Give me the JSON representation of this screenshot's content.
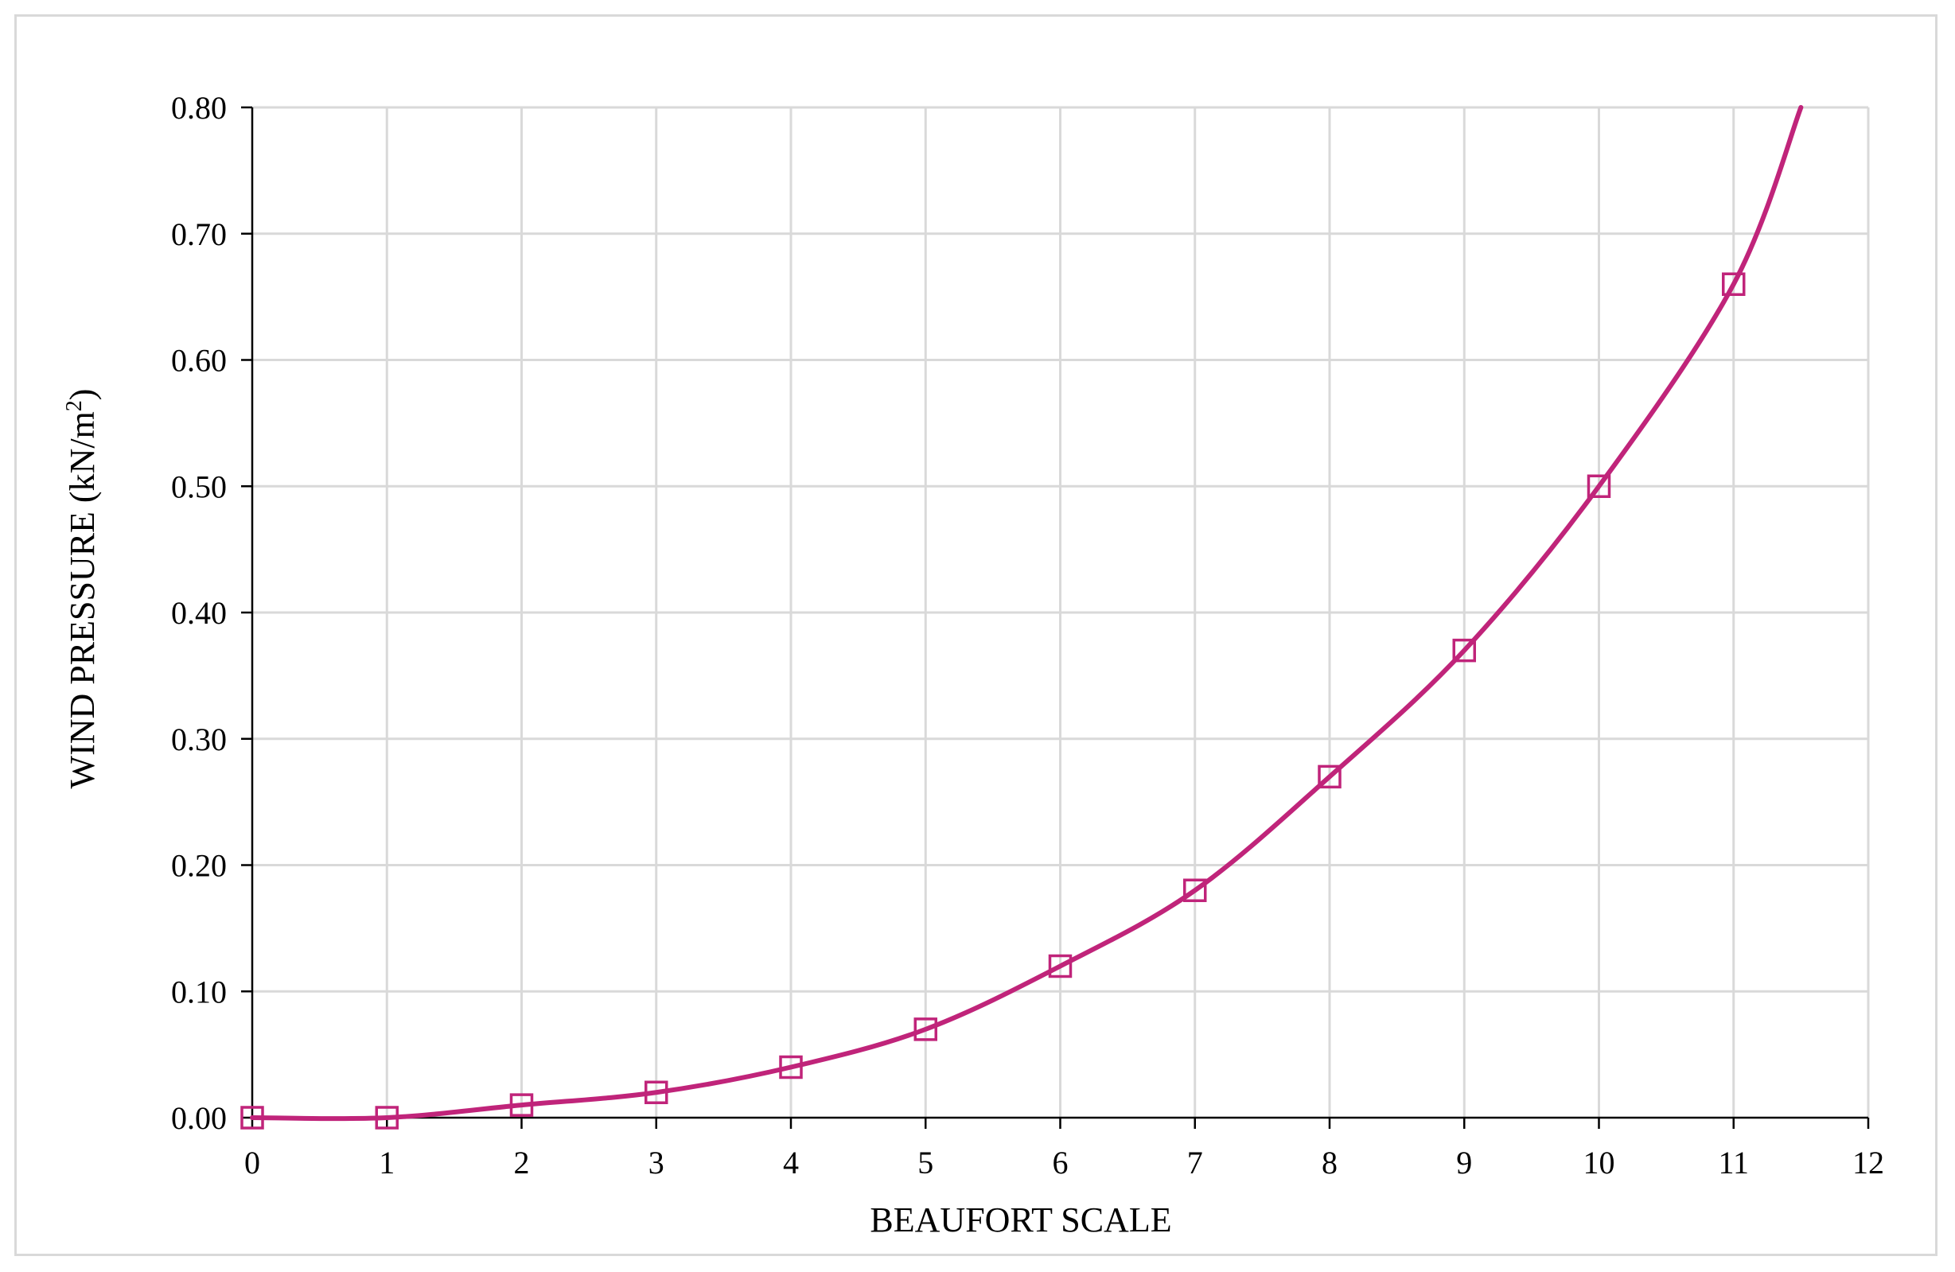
{
  "chart_data": {
    "type": "line",
    "xlabel": "BEAUFORT SCALE",
    "ylabel": "WIND PRESSURE (kN/m",
    "ylabel_superscript": "2",
    "ylabel_suffix": ")",
    "xlim": [
      0,
      12
    ],
    "ylim": [
      0,
      0.8
    ],
    "x_ticks": [
      "0",
      "1",
      "2",
      "3",
      "4",
      "5",
      "6",
      "7",
      "8",
      "9",
      "10",
      "11",
      "12"
    ],
    "y_ticks": [
      "0.00",
      "0.10",
      "0.20",
      "0.30",
      "0.40",
      "0.50",
      "0.60",
      "0.70",
      "0.80"
    ],
    "grid": true,
    "marker": "square",
    "series": [
      {
        "x": [
          0,
          1,
          2,
          3,
          4,
          5,
          6,
          7,
          8,
          9,
          10,
          11
        ],
        "values": [
          0.0,
          0.0,
          0.01,
          0.02,
          0.04,
          0.07,
          0.12,
          0.18,
          0.27,
          0.37,
          0.5,
          0.66
        ],
        "color": "#c0247a"
      }
    ],
    "curve_extension": {
      "x": 11.5,
      "y": 0.8
    }
  }
}
